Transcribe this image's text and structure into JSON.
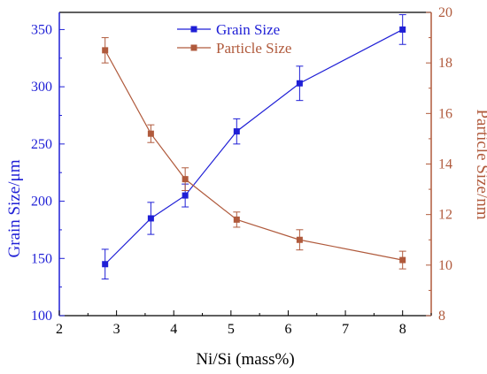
{
  "chart_data": {
    "type": "line",
    "xlabel": "Ni/Si (mass%)",
    "ylabel_left": "Grain Size/μm",
    "ylabel_right": "Particle Size/nm",
    "xlim": [
      2,
      8.5
    ],
    "xticks": [
      2,
      3,
      4,
      5,
      6,
      7,
      8
    ],
    "ylim_left": [
      100,
      365
    ],
    "yticks_left": [
      100,
      150,
      200,
      250,
      300,
      350
    ],
    "ylim_right": [
      8,
      20
    ],
    "yticks_right": [
      8,
      10,
      12,
      14,
      16,
      18,
      20
    ],
    "grid": false,
    "legend": "top-center",
    "series": [
      {
        "name": "Grain Size",
        "axis": "left",
        "color": "#1f1fd6",
        "marker": "square",
        "x": [
          2.8,
          3.6,
          4.2,
          5.1,
          6.2,
          8.0
        ],
        "y": [
          145,
          185,
          205,
          261,
          303,
          350
        ],
        "err": [
          13,
          14,
          10,
          11,
          15,
          13
        ]
      },
      {
        "name": "Particle Size",
        "axis": "right",
        "color": "#b05a3c",
        "marker": "square",
        "x": [
          2.8,
          3.6,
          4.2,
          5.1,
          6.2,
          8.0
        ],
        "y": [
          18.5,
          15.2,
          13.4,
          11.8,
          11.0,
          10.2
        ],
        "err": [
          0.5,
          0.35,
          0.45,
          0.3,
          0.4,
          0.35
        ]
      }
    ]
  }
}
